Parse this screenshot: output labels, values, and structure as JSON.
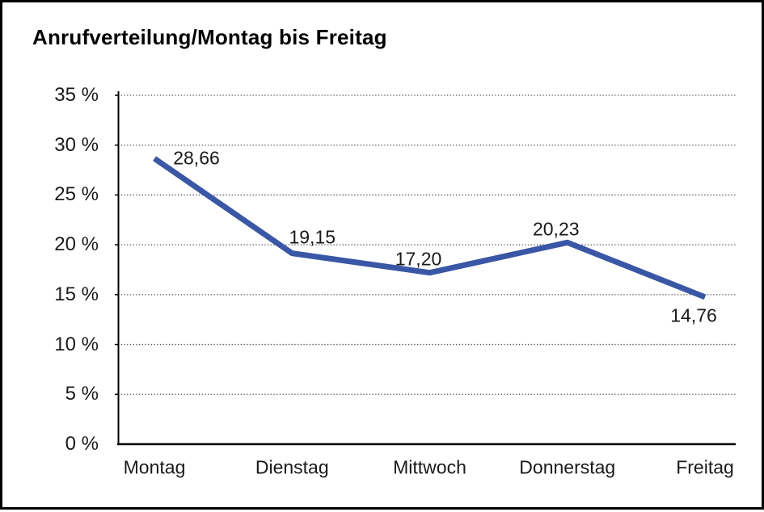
{
  "window": {
    "background_color": "#ffffff",
    "border_color": "#000000"
  },
  "chart_data": {
    "type": "line",
    "title": "Anrufverteilung/Montag bis Freitag",
    "categories": [
      "Montag",
      "Dienstag",
      "Mittwoch",
      "Donnerstag",
      "Freitag"
    ],
    "series": [
      {
        "name": "Anrufverteilung",
        "values": [
          28.66,
          19.15,
          17.2,
          20.23,
          14.76
        ]
      }
    ],
    "value_labels": [
      "28,66",
      "19,15",
      "17,20",
      "20,23",
      "14,76"
    ],
    "xlabel": "",
    "ylabel": "",
    "ylim": [
      0,
      35
    ],
    "ytick_step": 5,
    "ytick_labels": [
      "0 %",
      "5 %",
      "10 %",
      "15 %",
      "20 %",
      "25 %",
      "30 %",
      "35 %"
    ],
    "grid": "horizontal-dotted",
    "legend_position": "none",
    "line_color": "#3a57a6",
    "axis_color": "#000000",
    "gridline_color": "#4d4d4d",
    "text_color": "#1a1a1a"
  }
}
